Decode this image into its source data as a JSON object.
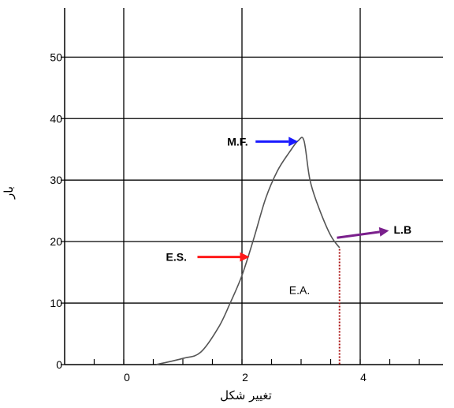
{
  "chart_data": {
    "type": "line",
    "xlabel": "تغییر شکل",
    "ylabel": "بار",
    "xlim": [
      -1,
      5.4
    ],
    "ylim": [
      0,
      58
    ],
    "x_ticks": [
      "0",
      "2",
      "4"
    ],
    "x_tick_values": [
      0,
      2,
      4
    ],
    "y_ticks": [
      "0",
      "10",
      "20",
      "30",
      "40",
      "50"
    ],
    "y_tick_values": [
      0,
      10,
      20,
      30,
      40,
      50
    ],
    "grid": true,
    "series": [
      {
        "x": [
          0.55,
          1.0,
          1.3,
          1.6,
          1.8,
          2.0,
          2.2,
          2.4,
          2.6,
          2.8,
          2.95,
          3.05,
          3.15,
          3.3,
          3.5,
          3.65
        ],
        "y": [
          0,
          1.0,
          2.0,
          6.0,
          10.0,
          14.5,
          20.5,
          27.0,
          31.5,
          34.5,
          36.4,
          36.4,
          30.0,
          25.5,
          21.0,
          19.0
        ]
      }
    ],
    "annotations": [
      {
        "label": "M.F.",
        "arrow_color": "#1a1aff",
        "points_to": [
          2.95,
          36.4
        ]
      },
      {
        "label": "E.S.",
        "arrow_color": "#ff1a1a",
        "points_to": [
          2.1,
          17.5
        ]
      },
      {
        "label": "L.B",
        "arrow_color": "#7a1f8c",
        "points_to": [
          3.5,
          20.5
        ]
      },
      {
        "label": "E.A.",
        "marker_color": "#aa1111",
        "marker_x": 3.65
      }
    ]
  }
}
